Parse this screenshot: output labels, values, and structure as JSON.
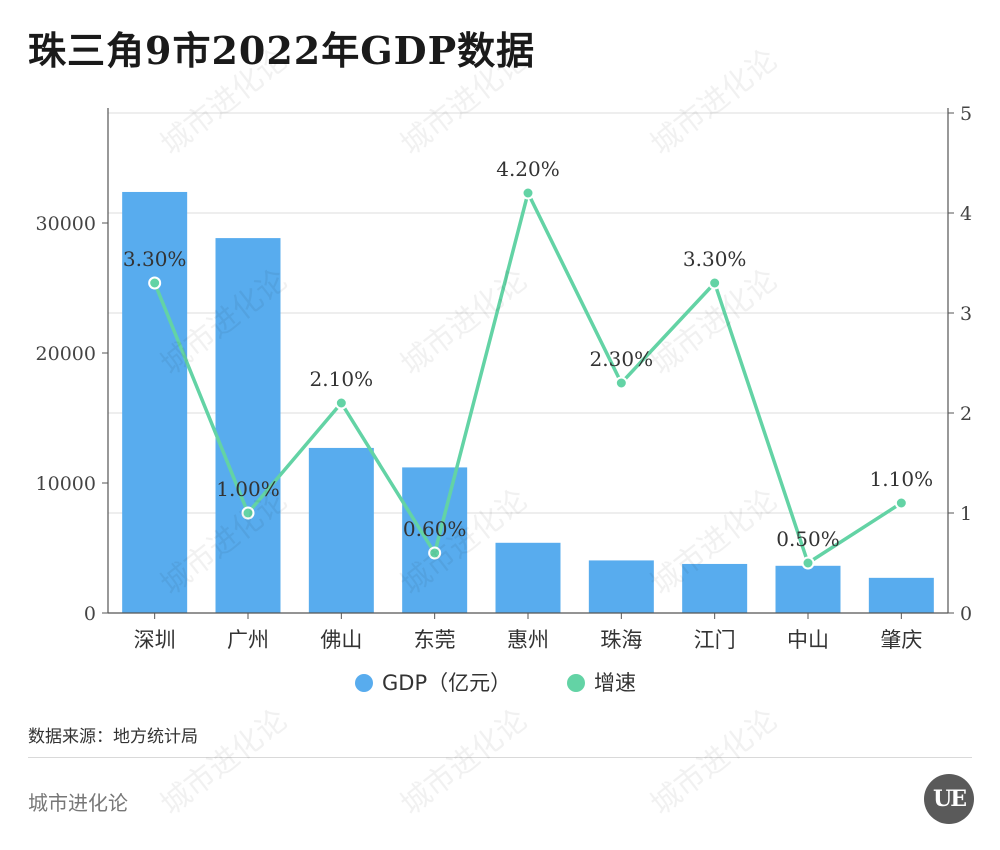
{
  "header": {
    "title": "珠三角9市2022年GDP数据"
  },
  "chart_data": {
    "type": "bar",
    "categories": [
      "深圳",
      "广州",
      "佛山",
      "东莞",
      "惠州",
      "珠海",
      "江门",
      "中山",
      "肇庆"
    ],
    "series": [
      {
        "name": "GDP（亿元）",
        "type": "bar",
        "axis": "left",
        "color": "#58ACEE",
        "values": [
          32388,
          28839,
          12698,
          11200,
          5401,
          4045,
          3773,
          3631,
          2705
        ]
      },
      {
        "name": "增速",
        "type": "line",
        "axis": "right",
        "color": "#63D3A5",
        "values": [
          3.3,
          1.0,
          2.1,
          0.6,
          4.2,
          2.3,
          3.3,
          0.5,
          1.1
        ],
        "data_labels": [
          "3.30%",
          "1.00%",
          "2.10%",
          "0.60%",
          "4.20%",
          "2.30%",
          "3.30%",
          "0.50%",
          "1.10%"
        ]
      }
    ],
    "y_left": {
      "range": [
        0,
        38462
      ],
      "ticks": [
        0,
        10000,
        20000,
        30000
      ]
    },
    "y_right": {
      "range": [
        0,
        5
      ],
      "ticks": [
        0,
        1,
        2,
        3,
        4,
        5
      ]
    },
    "grid": true,
    "legend": "bottom"
  },
  "footer": {
    "source": "数据来源：地方统计局",
    "brand": "城市进化论",
    "logo_text": "UE",
    "watermark": "城市进化论"
  }
}
